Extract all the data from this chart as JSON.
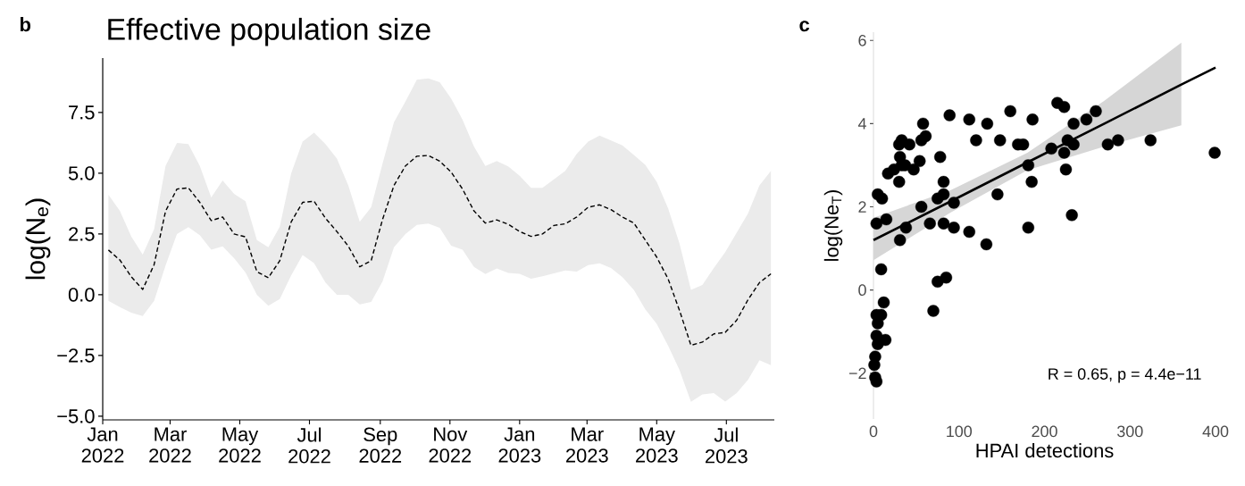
{
  "chart_data": [
    {
      "type": "line",
      "title": "Effective population size",
      "ylabel": "log(N$_{e}$)",
      "annotations": [
        "b"
      ],
      "xlim": [
        "2022-01-01",
        "2023-08-12"
      ],
      "ylim": [
        -5.15,
        9.74
      ],
      "xticks": [
        {
          "value": "2022-01",
          "label": "Jan 2022"
        },
        {
          "value": "2022-03",
          "label": "Mar 2022"
        },
        {
          "value": "2022-05",
          "label": "May 2022"
        },
        {
          "value": "2022-07",
          "label": "Jul 2022"
        },
        {
          "value": "2022-09",
          "label": "Sep 2022"
        },
        {
          "value": "2022-11",
          "label": "Nov 2022"
        },
        {
          "value": "2023-01",
          "label": "Jan 2023"
        },
        {
          "value": "2023-03",
          "label": "Mar 2023"
        },
        {
          "value": "2023-05",
          "label": "May 2023"
        },
        {
          "value": "2023-07",
          "label": "Jul 2023"
        }
      ],
      "yticks": [
        {
          "value": -5,
          "label": "−5.0"
        },
        {
          "value": -2.5,
          "label": "−2.5"
        },
        {
          "value": 0,
          "label": "0.0"
        },
        {
          "value": 2.5,
          "label": "2.5"
        },
        {
          "value": 5,
          "label": "5.0"
        },
        {
          "value": 7.5,
          "label": "7.5"
        }
      ],
      "series": [
        {
          "color": "#000000",
          "line_style": "dashed",
          "x": [
            "2022-01-06",
            "2022-01-16",
            "2022-01-26",
            "2022-02-05",
            "2022-02-15",
            "2022-02-25",
            "2022-03-07",
            "2022-03-17",
            "2022-03-27",
            "2022-04-06",
            "2022-04-16",
            "2022-04-26",
            "2022-05-06",
            "2022-05-16",
            "2022-05-26",
            "2022-06-05",
            "2022-06-15",
            "2022-06-25",
            "2022-07-05",
            "2022-07-15",
            "2022-07-25",
            "2022-08-04",
            "2022-08-14",
            "2022-08-24",
            "2022-09-03",
            "2022-09-13",
            "2022-09-23",
            "2022-10-03",
            "2022-10-13",
            "2022-10-23",
            "2022-11-02",
            "2022-11-12",
            "2022-11-22",
            "2022-12-02",
            "2022-12-12",
            "2022-12-22",
            "2023-01-01",
            "2023-01-11",
            "2023-01-21",
            "2023-01-31",
            "2023-02-10",
            "2023-02-20",
            "2023-03-02",
            "2023-03-12",
            "2023-03-22",
            "2023-04-01",
            "2023-04-11",
            "2023-04-21",
            "2023-05-01",
            "2023-05-11",
            "2023-05-21",
            "2023-05-31",
            "2023-06-10",
            "2023-06-20",
            "2023-06-30",
            "2023-07-10",
            "2023-07-20",
            "2023-07-30",
            "2023-08-09"
          ],
          "values": [
            1.84,
            1.43,
            0.74,
            0.22,
            1.24,
            3.44,
            4.35,
            4.4,
            3.8,
            3.05,
            3.2,
            2.5,
            2.38,
            0.95,
            0.7,
            1.4,
            3.0,
            3.8,
            3.85,
            3.15,
            2.6,
            2.0,
            1.15,
            1.4,
            3.1,
            4.5,
            5.3,
            5.7,
            5.73,
            5.5,
            5.05,
            4.35,
            3.45,
            2.95,
            3.08,
            2.9,
            2.6,
            2.4,
            2.5,
            2.85,
            2.92,
            3.2,
            3.6,
            3.7,
            3.5,
            3.2,
            2.95,
            2.25,
            1.55,
            0.65,
            -0.65,
            -2.08,
            -1.95,
            -1.61,
            -1.55,
            -1.05,
            -0.2,
            0.5,
            0.86
          ],
          "upper": [
            4.11,
            3.45,
            2.4,
            1.65,
            2.7,
            5.3,
            6.25,
            6.2,
            5.3,
            4.0,
            4.7,
            4.15,
            3.85,
            2.25,
            1.95,
            2.8,
            5.0,
            6.3,
            6.67,
            6.2,
            5.6,
            4.5,
            3.0,
            3.6,
            5.4,
            7.1,
            7.95,
            8.85,
            8.9,
            8.75,
            8.08,
            7.2,
            6.1,
            5.3,
            5.5,
            5.28,
            4.9,
            4.4,
            4.4,
            4.75,
            5.1,
            5.8,
            6.3,
            6.55,
            6.35,
            6.15,
            5.75,
            5.35,
            4.65,
            3.55,
            2.1,
            0.2,
            0.4,
            1.1,
            1.75,
            2.55,
            3.35,
            4.5,
            5.1
          ],
          "lower": [
            -0.25,
            -0.51,
            -0.74,
            -0.88,
            -0.25,
            1.2,
            2.5,
            2.78,
            2.45,
            1.85,
            1.99,
            1.5,
            0.92,
            0.0,
            -0.45,
            -0.18,
            0.8,
            1.63,
            1.3,
            0.5,
            0.0,
            0.0,
            -0.4,
            -0.3,
            0.55,
            1.95,
            2.5,
            2.87,
            2.93,
            2.75,
            2.02,
            1.85,
            1.15,
            0.85,
            1.08,
            0.9,
            0.86,
            0.66,
            0.76,
            0.88,
            1.0,
            0.95,
            1.22,
            1.29,
            1.1,
            0.72,
            0.2,
            -0.6,
            -1.2,
            -2.1,
            -3.1,
            -4.41,
            -4.1,
            -4.05,
            -4.4,
            -4.05,
            -3.5,
            -2.7,
            -2.9
          ]
        }
      ]
    },
    {
      "type": "scatter",
      "xlabel": "HPAI detections",
      "ylabel": "log(Ne$_{T}$)",
      "annotations": [
        "c",
        "R = 0.65, p = 4.4e−11"
      ],
      "xlim": [
        0,
        400
      ],
      "ylim": [
        -3.1,
        6.2
      ],
      "xticks": [
        0,
        100,
        200,
        300,
        400
      ],
      "yticks": [
        {
          "value": -2,
          "label": "−2"
        },
        0,
        2,
        4,
        6
      ],
      "series": [
        {
          "color": "#000000",
          "marker": "circle",
          "x": [
            3.5,
            5,
            10,
            15,
            9,
            12,
            3.5,
            9,
            5,
            3.5,
            14,
            5,
            2,
            1,
            2,
            3.5,
            31,
            38,
            17,
            24,
            30,
            33,
            31,
            30,
            33,
            42,
            37,
            47,
            54,
            56,
            61,
            58,
            56,
            66,
            78,
            82,
            75,
            82,
            94,
            82,
            94,
            89,
            112,
            120,
            112,
            133,
            132,
            148,
            145,
            160,
            169,
            175,
            186,
            181,
            185,
            181,
            208,
            215,
            223,
            223,
            227,
            234,
            234,
            225,
            232,
            249,
            260,
            274,
            286,
            324,
            399,
            75,
            85,
            70
          ],
          "values": [
            1.6,
            2.3,
            2.2,
            1.7,
            0.5,
            -0.3,
            -0.6,
            -0.6,
            -0.8,
            -1.1,
            -1.2,
            -1.3,
            -1.6,
            -1.8,
            -2.1,
            -2.2,
            1.2,
            1.5,
            2.8,
            2.9,
            2.6,
            3.0,
            3.2,
            3.5,
            3.6,
            3.5,
            3.0,
            2.9,
            3.1,
            3.6,
            3.7,
            4.0,
            2.0,
            1.6,
            3.2,
            2.6,
            2.2,
            2.3,
            2.1,
            1.6,
            1.5,
            4.2,
            4.1,
            3.6,
            1.4,
            4.0,
            1.1,
            3.6,
            2.3,
            4.3,
            3.5,
            3.5,
            4.1,
            3.0,
            2.6,
            1.5,
            3.4,
            4.5,
            4.4,
            3.3,
            3.6,
            4.0,
            3.5,
            2.9,
            1.8,
            4.1,
            4.3,
            3.5,
            3.6,
            3.6,
            3.3,
            0.2,
            0.3,
            -0.5
          ]
        },
        {
          "type": "line",
          "color": "#000000",
          "line_style": "solid",
          "x": [
            0,
            90,
            180,
            270,
            360,
            400
          ],
          "values": [
            1.2,
            2.13,
            3.07,
            4.0,
            4.94,
            5.35
          ],
          "lower": [
            0.72,
            1.86,
            2.88,
            3.45,
            3.96,
            null
          ],
          "upper": [
            1.74,
            2.4,
            3.3,
            4.55,
            5.95,
            null
          ]
        }
      ]
    }
  ]
}
